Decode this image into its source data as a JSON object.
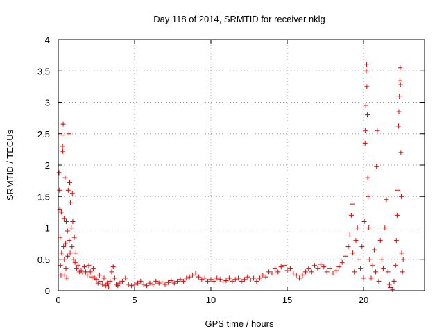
{
  "chart_data": {
    "type": "scatter",
    "title": "Day 118 of 2014, SRMTID for receiver nklg",
    "xlabel": "GPS time / hours",
    "ylabel": "SRMTID / TECUs",
    "xlim": [
      0,
      24
    ],
    "ylim": [
      0,
      4
    ],
    "xticks": [
      0,
      5,
      10,
      15,
      20
    ],
    "xtick_labels": [
      "0",
      "5",
      "10",
      "15",
      "20"
    ],
    "yticks": [
      0,
      0.5,
      1,
      1.5,
      2,
      2.5,
      3,
      3.5,
      4
    ],
    "ytick_labels": [
      "0",
      "0.5",
      "1",
      "1.5",
      "2",
      "2.5",
      "3",
      "3.5",
      "4"
    ],
    "grid": true,
    "marker": "+",
    "color": "#e00000",
    "series": [
      {
        "name": "SRMTID",
        "points": [
          [
            0.05,
            1.88
          ],
          [
            0.08,
            1.6
          ],
          [
            0.1,
            1.3
          ],
          [
            0.12,
            0.85
          ],
          [
            0.15,
            0.4
          ],
          [
            0.18,
            0.25
          ],
          [
            0.2,
            1.25
          ],
          [
            0.22,
            0.6
          ],
          [
            0.25,
            2.48
          ],
          [
            0.28,
            2.3
          ],
          [
            0.3,
            2.22
          ],
          [
            0.32,
            2.65
          ],
          [
            0.35,
            0.7
          ],
          [
            0.38,
            1.15
          ],
          [
            0.4,
            0.5
          ],
          [
            0.42,
            0.25
          ],
          [
            0.45,
            1.8
          ],
          [
            0.48,
            0.75
          ],
          [
            0.5,
            0.35
          ],
          [
            0.52,
            1.1
          ],
          [
            0.55,
            0.2
          ],
          [
            0.6,
            0.95
          ],
          [
            0.62,
            0.55
          ],
          [
            0.65,
            1.6
          ],
          [
            0.7,
            2.5
          ],
          [
            0.72,
            0.8
          ],
          [
            0.75,
            1.72
          ],
          [
            0.78,
            0.6
          ],
          [
            0.8,
            1.4
          ],
          [
            0.85,
            1.0
          ],
          [
            0.9,
            0.7
          ],
          [
            0.92,
            1.55
          ],
          [
            0.95,
            1.1
          ],
          [
            1.0,
            0.5
          ],
          [
            1.05,
            0.85
          ],
          [
            1.1,
            0.45
          ],
          [
            1.15,
            0.6
          ],
          [
            1.2,
            0.35
          ],
          [
            1.3,
            0.4
          ],
          [
            1.4,
            0.3
          ],
          [
            1.5,
            0.32
          ],
          [
            1.6,
            0.28
          ],
          [
            1.7,
            0.38
          ],
          [
            1.8,
            0.3
          ],
          [
            1.9,
            0.25
          ],
          [
            2.0,
            0.4
          ],
          [
            2.1,
            0.3
          ],
          [
            2.2,
            0.22
          ],
          [
            2.3,
            0.35
          ],
          [
            2.4,
            0.2
          ],
          [
            2.5,
            0.18
          ],
          [
            2.6,
            0.12
          ],
          [
            2.7,
            0.25
          ],
          [
            2.8,
            0.15
          ],
          [
            2.9,
            0.1
          ],
          [
            3.0,
            0.2
          ],
          [
            3.1,
            0.08
          ],
          [
            3.2,
            0.12
          ],
          [
            3.3,
            0.06
          ],
          [
            3.4,
            0.15
          ],
          [
            3.5,
            0.3
          ],
          [
            3.6,
            0.38
          ],
          [
            3.7,
            0.2
          ],
          [
            3.8,
            0.1
          ],
          [
            3.9,
            0.08
          ],
          [
            4.0,
            0.12
          ],
          [
            4.2,
            0.15
          ],
          [
            4.4,
            0.2
          ],
          [
            4.6,
            0.1
          ],
          [
            4.8,
            0.08
          ],
          [
            5.0,
            0.1
          ],
          [
            5.2,
            0.12
          ],
          [
            5.4,
            0.15
          ],
          [
            5.6,
            0.1
          ],
          [
            5.8,
            0.08
          ],
          [
            6.0,
            0.12
          ],
          [
            6.2,
            0.1
          ],
          [
            6.4,
            0.15
          ],
          [
            6.6,
            0.12
          ],
          [
            6.8,
            0.14
          ],
          [
            7.0,
            0.1
          ],
          [
            7.2,
            0.13
          ],
          [
            7.4,
            0.16
          ],
          [
            7.6,
            0.12
          ],
          [
            7.8,
            0.15
          ],
          [
            8.0,
            0.18
          ],
          [
            8.2,
            0.15
          ],
          [
            8.4,
            0.2
          ],
          [
            8.6,
            0.22
          ],
          [
            8.8,
            0.25
          ],
          [
            9.0,
            0.28
          ],
          [
            9.2,
            0.22
          ],
          [
            9.4,
            0.18
          ],
          [
            9.6,
            0.2
          ],
          [
            9.8,
            0.15
          ],
          [
            10.0,
            0.18
          ],
          [
            10.2,
            0.15
          ],
          [
            10.4,
            0.2
          ],
          [
            10.6,
            0.18
          ],
          [
            10.8,
            0.14
          ],
          [
            11.0,
            0.16
          ],
          [
            11.2,
            0.2
          ],
          [
            11.4,
            0.15
          ],
          [
            11.6,
            0.18
          ],
          [
            11.8,
            0.2
          ],
          [
            12.0,
            0.15
          ],
          [
            12.2,
            0.18
          ],
          [
            12.4,
            0.22
          ],
          [
            12.6,
            0.17
          ],
          [
            12.8,
            0.2
          ],
          [
            13.0,
            0.15
          ],
          [
            13.2,
            0.2
          ],
          [
            13.4,
            0.25
          ],
          [
            13.6,
            0.22
          ],
          [
            13.8,
            0.3
          ],
          [
            14.0,
            0.28
          ],
          [
            14.2,
            0.35
          ],
          [
            14.4,
            0.3
          ],
          [
            14.6,
            0.38
          ],
          [
            14.8,
            0.4
          ],
          [
            15.0,
            0.32
          ],
          [
            15.2,
            0.35
          ],
          [
            15.4,
            0.28
          ],
          [
            15.6,
            0.25
          ],
          [
            15.8,
            0.2
          ],
          [
            16.0,
            0.25
          ],
          [
            16.2,
            0.3
          ],
          [
            16.4,
            0.35
          ],
          [
            16.6,
            0.3
          ],
          [
            16.8,
            0.4
          ],
          [
            17.0,
            0.35
          ],
          [
            17.2,
            0.42
          ],
          [
            17.4,
            0.38
          ],
          [
            17.6,
            0.3
          ],
          [
            17.8,
            0.35
          ],
          [
            18.0,
            0.28
          ],
          [
            18.2,
            0.32
          ],
          [
            18.4,
            0.38
          ],
          [
            18.6,
            0.45
          ],
          [
            18.8,
            0.55
          ],
          [
            19.0,
            0.7
          ],
          [
            19.1,
            0.9
          ],
          [
            19.2,
            1.2
          ],
          [
            19.25,
            1.38
          ],
          [
            19.3,
            0.6
          ],
          [
            19.4,
            0.3
          ],
          [
            19.5,
            0.8
          ],
          [
            19.6,
            1.0
          ],
          [
            19.7,
            0.5
          ],
          [
            19.8,
            0.35
          ],
          [
            19.9,
            0.7
          ],
          [
            20.0,
            0.2
          ],
          [
            20.05,
            1.1
          ],
          [
            20.1,
            2.35
          ],
          [
            20.12,
            2.55
          ],
          [
            20.15,
            2.95
          ],
          [
            20.18,
            3.5
          ],
          [
            20.2,
            3.6
          ],
          [
            20.22,
            3.25
          ],
          [
            20.25,
            2.8
          ],
          [
            20.28,
            1.8
          ],
          [
            20.3,
            1.5
          ],
          [
            20.35,
            1.0
          ],
          [
            20.4,
            0.5
          ],
          [
            20.5,
            0.2
          ],
          [
            20.6,
            0.4
          ],
          [
            20.7,
            0.65
          ],
          [
            20.8,
            0.3
          ],
          [
            20.85,
            1.98
          ],
          [
            20.9,
            2.55
          ],
          [
            21.0,
            0.15
          ],
          [
            21.1,
            0.8
          ],
          [
            21.2,
            0.5
          ],
          [
            21.3,
            0.35
          ],
          [
            21.4,
            1.0
          ],
          [
            21.5,
            1.45
          ],
          [
            21.6,
            0.3
          ],
          [
            21.7,
            0.1
          ],
          [
            21.8,
            0.05
          ],
          [
            21.9,
            0.02
          ],
          [
            22.0,
            0.15
          ],
          [
            22.1,
            0.4
          ],
          [
            22.15,
            0.8
          ],
          [
            22.2,
            1.2
          ],
          [
            22.25,
            1.6
          ],
          [
            22.3,
            2.62
          ],
          [
            22.32,
            2.85
          ],
          [
            22.35,
            3.1
          ],
          [
            22.38,
            3.35
          ],
          [
            22.4,
            3.55
          ],
          [
            22.42,
            3.28
          ],
          [
            22.45,
            2.2
          ],
          [
            22.48,
            1.5
          ],
          [
            22.5,
            0.6
          ],
          [
            22.55,
            0.3
          ],
          [
            22.6,
            0.5
          ]
        ]
      }
    ]
  }
}
